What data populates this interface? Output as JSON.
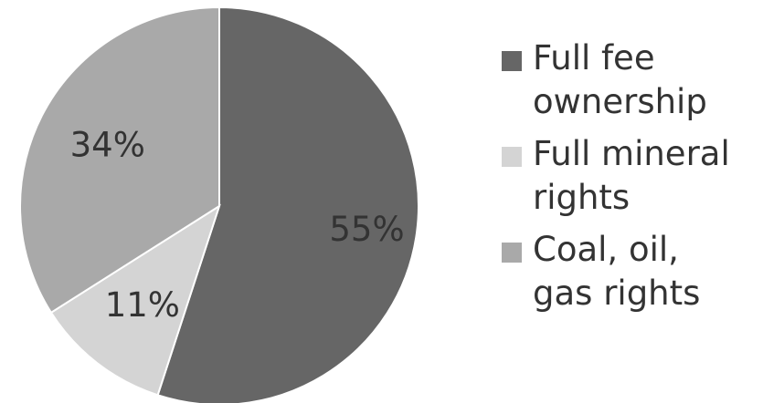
{
  "chart_data": {
    "type": "pie",
    "title": "",
    "legend_position": "right",
    "slices": [
      {
        "label": "Full fee ownership",
        "value": 55,
        "display": "55%",
        "color": "#666666",
        "label_color": "#333333"
      },
      {
        "label": "Full mineral rights",
        "value": 11,
        "display": "11%",
        "color": "#d4d4d4",
        "label_color": "#333333"
      },
      {
        "label": "Coal, oil, gas rights",
        "value": 34,
        "display": "34%",
        "color": "#a9a9a9",
        "label_color": "#333333"
      }
    ],
    "legend": [
      {
        "label_lines": [
          "Full fee",
          "ownership"
        ],
        "color": "#666666"
      },
      {
        "label_lines": [
          "Full mineral",
          "rights"
        ],
        "color": "#d4d4d4"
      },
      {
        "label_lines": [
          "Coal, oil,",
          "gas rights"
        ],
        "color": "#a9a9a9"
      }
    ]
  }
}
